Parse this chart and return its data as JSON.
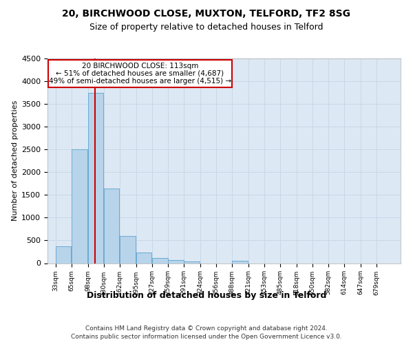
{
  "title1": "20, BIRCHWOOD CLOSE, MUXTON, TELFORD, TF2 8SG",
  "title2": "Size of property relative to detached houses in Telford",
  "xlabel": "Distribution of detached houses by size in Telford",
  "ylabel": "Number of detached properties",
  "bin_labels": [
    "33sqm",
    "65sqm",
    "98sqm",
    "130sqm",
    "162sqm",
    "195sqm",
    "227sqm",
    "259sqm",
    "291sqm",
    "324sqm",
    "356sqm",
    "388sqm",
    "421sqm",
    "453sqm",
    "485sqm",
    "518sqm",
    "550sqm",
    "582sqm",
    "614sqm",
    "647sqm",
    "679sqm"
  ],
  "bin_edges": [
    33,
    65,
    98,
    130,
    162,
    195,
    227,
    259,
    291,
    324,
    356,
    388,
    421,
    453,
    485,
    518,
    550,
    582,
    614,
    647,
    679
  ],
  "bin_width": 32,
  "bar_heights": [
    370,
    2500,
    3750,
    1640,
    590,
    230,
    110,
    65,
    40,
    0,
    0,
    55,
    0,
    0,
    0,
    0,
    0,
    0,
    0,
    0,
    0
  ],
  "bar_color": "#b8d4ea",
  "bar_edge_color": "#6aaad4",
  "grid_color": "#c8d8e8",
  "background_color": "#dce8f4",
  "property_size": 113,
  "red_line_color": "#cc0000",
  "ann_line1": "20 BIRCHWOOD CLOSE: 113sqm",
  "ann_line2": "← 51% of detached houses are smaller (4,687)",
  "ann_line3": "49% of semi-detached houses are larger (4,515) →",
  "annotation_box_color": "#cc0000",
  "ylim": [
    0,
    4500
  ],
  "yticks": [
    0,
    500,
    1000,
    1500,
    2000,
    2500,
    3000,
    3500,
    4000,
    4500
  ],
  "footer_line1": "Contains HM Land Registry data © Crown copyright and database right 2024.",
  "footer_line2": "Contains public sector information licensed under the Open Government Licence v3.0.",
  "title1_fontsize": 10,
  "title2_fontsize": 9,
  "xlabel_fontsize": 9,
  "ylabel_fontsize": 8
}
